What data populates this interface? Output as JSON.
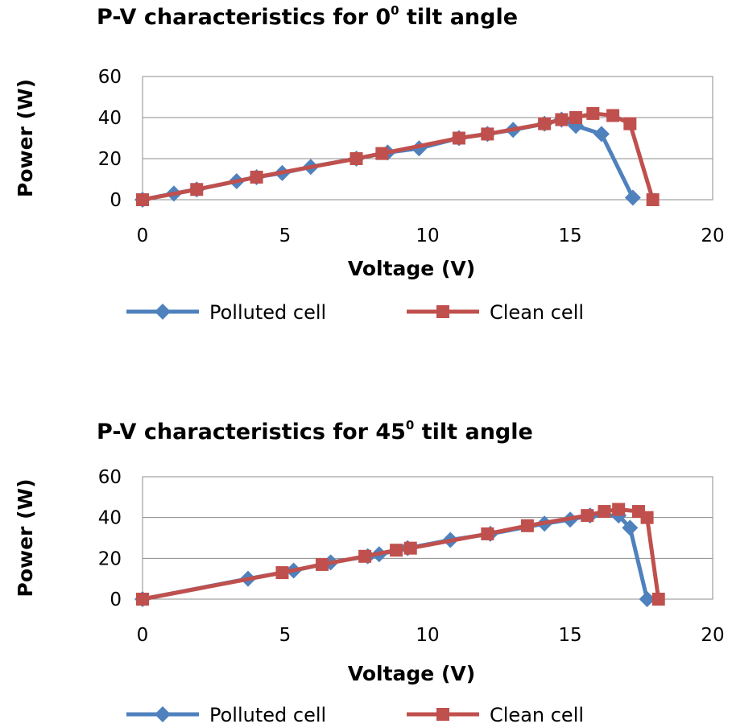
{
  "chart_data": [
    {
      "type": "line",
      "title_main": "P-V characteristics for 0",
      "title_sup": "0",
      "title_rest": " tilt angle",
      "xlabel": "Voltage (V)",
      "ylabel": "Power (W)",
      "xlim": [
        0,
        20
      ],
      "ylim": [
        0,
        60
      ],
      "xticks": [
        "0",
        "5",
        "10",
        "15",
        "20"
      ],
      "yticks": [
        "0",
        "20",
        "40",
        "60"
      ],
      "grid": "horizontal",
      "legend_position": "bottom",
      "series": [
        {
          "name": "Polluted cell",
          "color": "#4f81bd",
          "marker": "diamond",
          "points": [
            [
              0.0,
              0
            ],
            [
              1.1,
              3
            ],
            [
              1.9,
              5
            ],
            [
              3.3,
              9
            ],
            [
              4.0,
              11
            ],
            [
              4.9,
              13
            ],
            [
              5.9,
              16
            ],
            [
              7.5,
              20
            ],
            [
              8.6,
              23
            ],
            [
              9.7,
              25
            ],
            [
              11.1,
              30
            ],
            [
              12.1,
              32
            ],
            [
              13.0,
              34
            ],
            [
              14.1,
              37
            ],
            [
              14.7,
              39
            ],
            [
              15.2,
              36
            ],
            [
              16.1,
              32
            ],
            [
              17.2,
              1
            ]
          ]
        },
        {
          "name": "Clean cell",
          "color": "#c0504d",
          "marker": "square",
          "points": [
            [
              0.0,
              0
            ],
            [
              1.9,
              5
            ],
            [
              4.0,
              11
            ],
            [
              7.5,
              20
            ],
            [
              8.4,
              22.5
            ],
            [
              11.1,
              30
            ],
            [
              12.1,
              32
            ],
            [
              14.1,
              37
            ],
            [
              14.7,
              39
            ],
            [
              15.2,
              40
            ],
            [
              15.8,
              42
            ],
            [
              16.5,
              41
            ],
            [
              17.1,
              37
            ],
            [
              17.9,
              0
            ]
          ]
        }
      ]
    },
    {
      "type": "line",
      "title_main": "P-V characteristics for 45",
      "title_sup": "0",
      "title_rest": " tilt angle",
      "xlabel": "Voltage (V)",
      "ylabel": "Power (W)",
      "xlim": [
        0,
        20
      ],
      "ylim": [
        0,
        60
      ],
      "xticks": [
        "0",
        "5",
        "10",
        "15",
        "20"
      ],
      "yticks": [
        "0",
        "20",
        "40",
        "60"
      ],
      "grid": "horizontal",
      "legend_position": "bottom",
      "series": [
        {
          "name": "Polluted cell",
          "color": "#4f81bd",
          "marker": "diamond",
          "points": [
            [
              0.0,
              0
            ],
            [
              3.7,
              10
            ],
            [
              5.3,
              14
            ],
            [
              6.6,
              18
            ],
            [
              7.9,
              21
            ],
            [
              8.3,
              22
            ],
            [
              9.3,
              25
            ],
            [
              10.8,
              29
            ],
            [
              12.2,
              32
            ],
            [
              14.1,
              37
            ],
            [
              15.0,
              39
            ],
            [
              15.7,
              41
            ],
            [
              16.7,
              41
            ],
            [
              17.1,
              35
            ],
            [
              17.7,
              0
            ]
          ]
        },
        {
          "name": "Clean cell",
          "color": "#c0504d",
          "marker": "square",
          "points": [
            [
              0.0,
              0
            ],
            [
              4.9,
              13
            ],
            [
              6.3,
              17
            ],
            [
              7.8,
              21
            ],
            [
              8.9,
              24
            ],
            [
              9.4,
              25
            ],
            [
              12.1,
              32
            ],
            [
              13.5,
              36
            ],
            [
              15.6,
              41
            ],
            [
              16.2,
              43
            ],
            [
              16.7,
              44
            ],
            [
              17.4,
              43
            ],
            [
              17.7,
              40
            ],
            [
              18.1,
              0
            ]
          ]
        }
      ]
    }
  ]
}
